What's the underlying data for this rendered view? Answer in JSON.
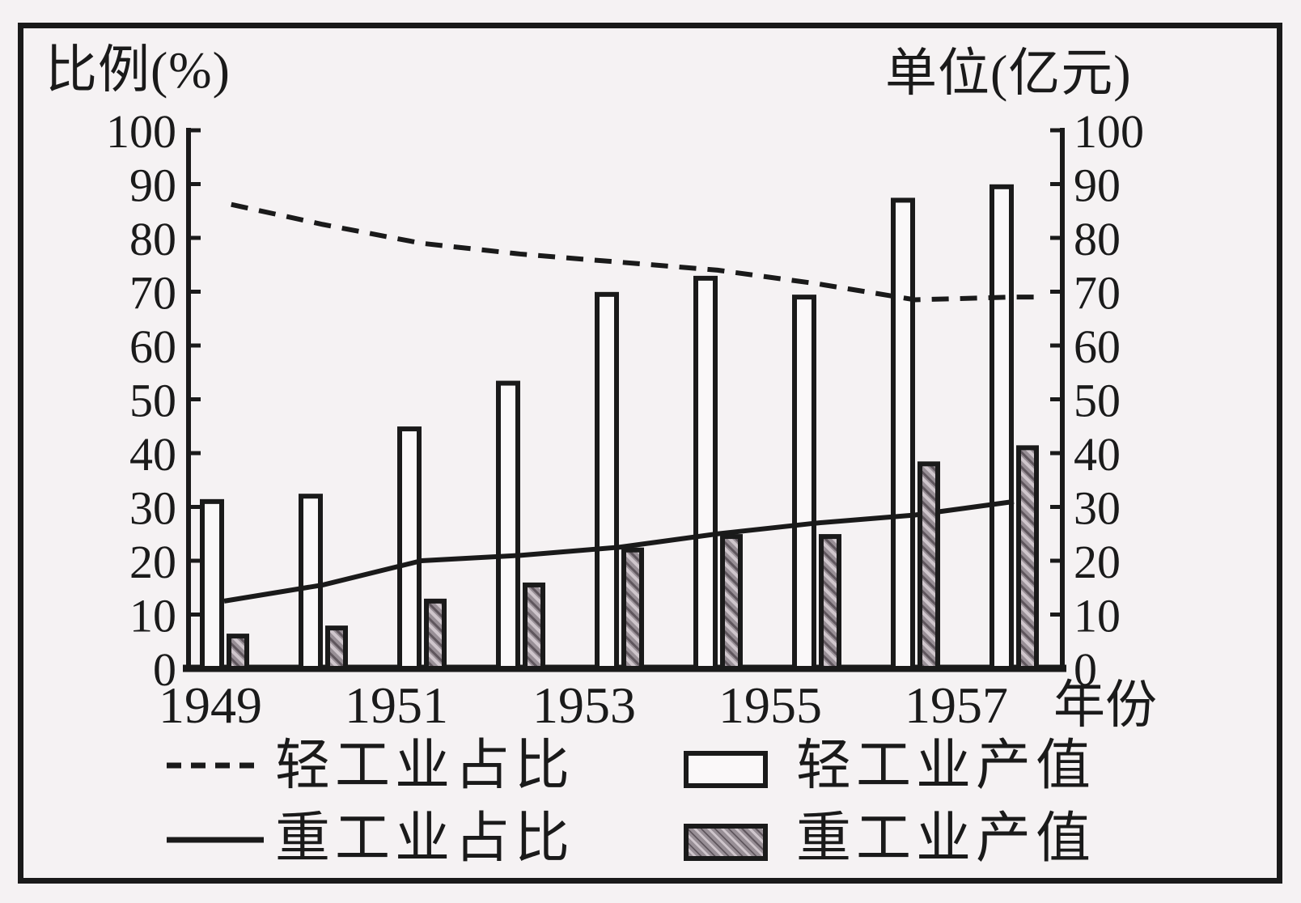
{
  "figure": {
    "axes": {
      "left_title": "比例(%)",
      "right_title": "单位(亿元)",
      "y_tick_labels": [
        "100",
        "90",
        "80",
        "70",
        "60",
        "50",
        "40",
        "30",
        "20",
        "10",
        "0"
      ],
      "x_tick_labels": [
        "1949",
        "1951",
        "1953",
        "1955",
        "1957"
      ],
      "x_axis_suffix": "年份"
    },
    "legend": {
      "light_share": "轻工业占比",
      "light_output": "轻工业产值",
      "heavy_share": "重工业占比",
      "heavy_output": "重工业产值"
    },
    "colors": {
      "ink": "#1a1a1a",
      "paper": "#f5f2f3",
      "bar_white_fill": "#faf8f9",
      "bar_gray_fill": "#988f96",
      "hatch_light": "#cfc6cc",
      "hatch_dark": "#5f565d"
    }
  },
  "chart_data": {
    "type": "bar",
    "subtype": "dual-axis bar and line combo",
    "x": [
      1949,
      1950,
      1951,
      1952,
      1953,
      1954,
      1955,
      1956,
      1957
    ],
    "x_labeled_ticks": [
      1949,
      1951,
      1953,
      1955,
      1957
    ],
    "x_title": "年份",
    "ylim_left_percent": [
      0,
      100
    ],
    "ylim_right_yi_yuan": [
      0,
      100
    ],
    "grid": false,
    "legend_position": "bottom",
    "series": [
      {
        "name": "轻工业占比",
        "type": "line",
        "line_style": "dashed",
        "axis": "left",
        "unit": "%",
        "values": [
          86.5,
          82.5,
          79,
          77,
          75.5,
          74,
          71.5,
          68.5,
          69
        ]
      },
      {
        "name": "重工业占比",
        "type": "line",
        "line_style": "solid",
        "axis": "left",
        "unit": "%",
        "values": [
          12.5,
          15.5,
          20,
          21,
          22.5,
          25,
          27,
          28.5,
          31
        ]
      },
      {
        "name": "轻工业产值",
        "type": "bar",
        "bar_style": "white-outline",
        "axis": "right",
        "unit": "亿元",
        "values": [
          31,
          32,
          44.5,
          53,
          69.5,
          72.5,
          69,
          87,
          89.5
        ]
      },
      {
        "name": "重工业产值",
        "type": "bar",
        "bar_style": "gray-hatched",
        "axis": "right",
        "unit": "亿元",
        "values": [
          6,
          7.5,
          12.5,
          15.5,
          22,
          24.5,
          24.5,
          38,
          41
        ]
      }
    ]
  }
}
